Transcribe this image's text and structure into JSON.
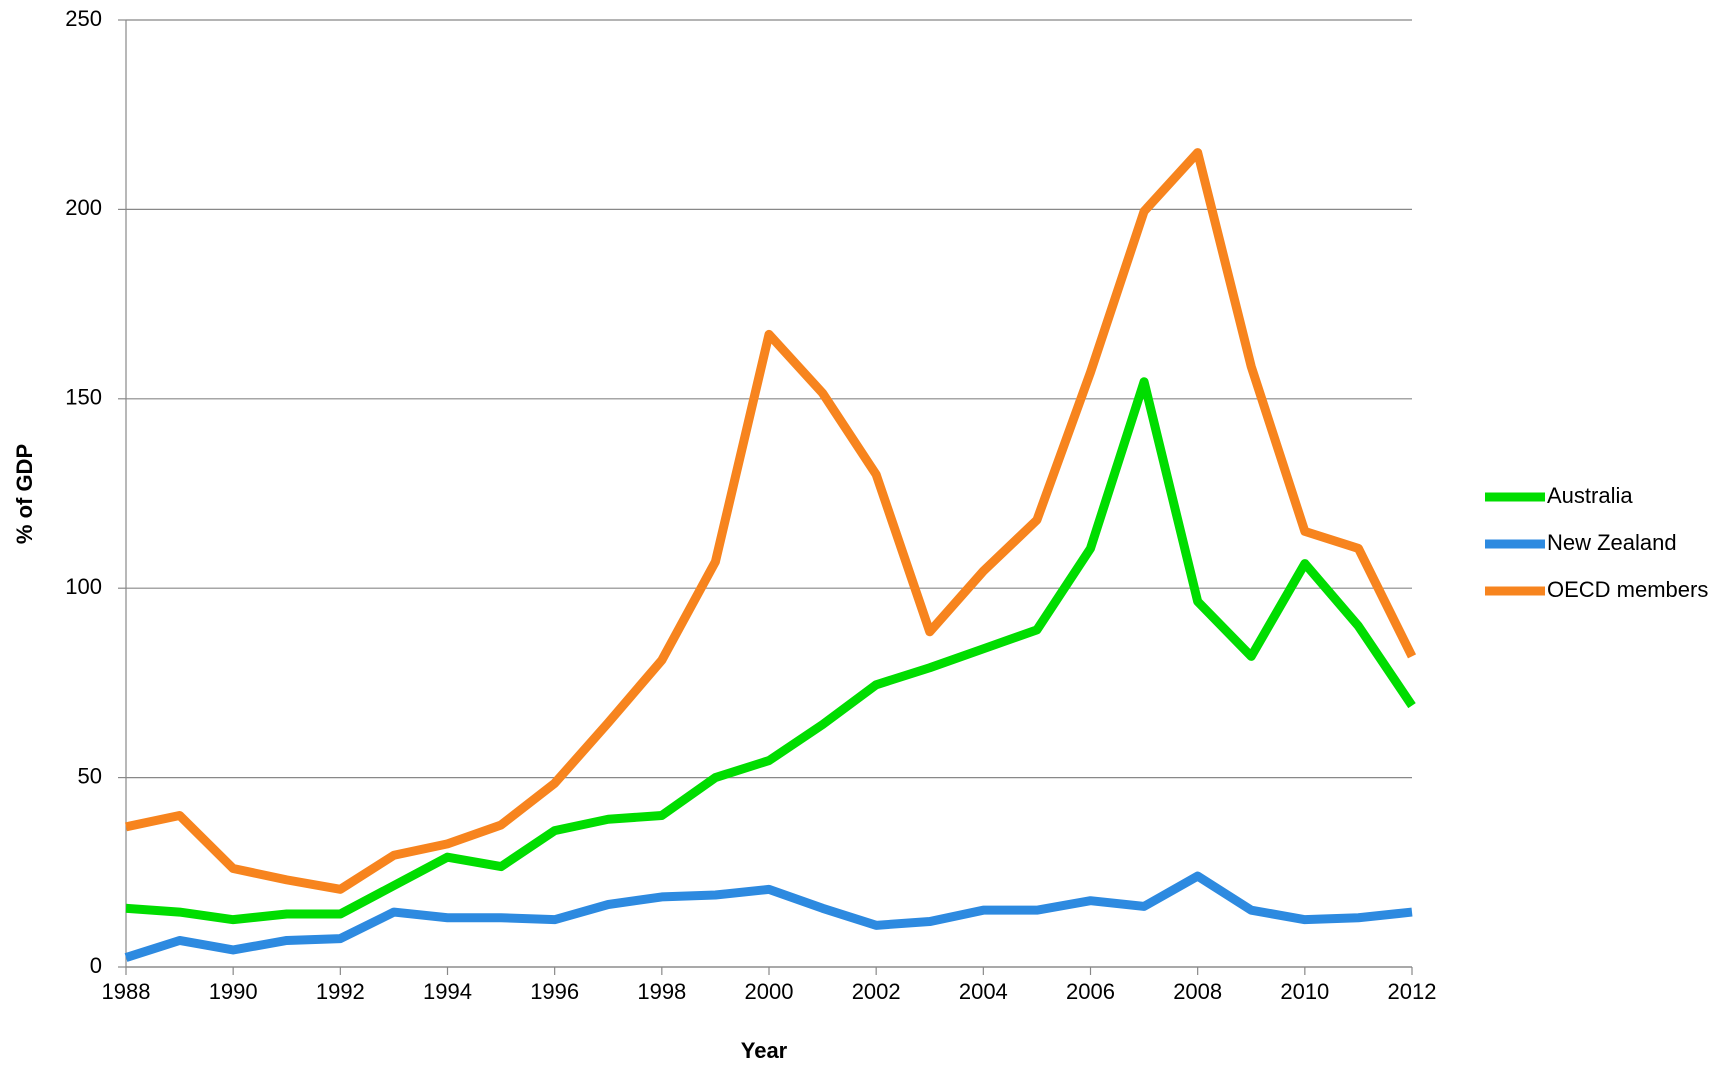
{
  "chart_data": {
    "type": "line",
    "x_label": "Year",
    "y_label": "% of GDP",
    "x": [
      1988,
      1989,
      1990,
      1991,
      1992,
      1993,
      1994,
      1995,
      1996,
      1997,
      1998,
      1999,
      2000,
      2001,
      2002,
      2003,
      2004,
      2005,
      2006,
      2007,
      2008,
      2009,
      2010,
      2011,
      2012
    ],
    "series": [
      {
        "name": "Australia",
        "color": "#00dd00",
        "values": [
          15.5,
          14.5,
          12.5,
          14,
          14,
          21.5,
          29,
          26.5,
          36,
          39,
          40,
          50,
          54.5,
          64,
          74.5,
          79,
          84,
          89,
          110.5,
          154.5,
          96.5,
          82,
          106.5,
          90,
          69
        ]
      },
      {
        "name": "New Zealand",
        "color": "#2d8ae0",
        "values": [
          2.5,
          7,
          4.5,
          7,
          7.5,
          14.5,
          13,
          13,
          12.5,
          16.5,
          18.5,
          19,
          20.5,
          15.5,
          11,
          12,
          15,
          15,
          17.5,
          16,
          24,
          15,
          12.5,
          13,
          14.5
        ]
      },
      {
        "name": "OECD members",
        "color": "#f7841e",
        "values": [
          37,
          40,
          26,
          23,
          20.5,
          29.5,
          32.5,
          37.5,
          48.5,
          64.5,
          81,
          107,
          167,
          151.5,
          130,
          88.5,
          104.5,
          118,
          157,
          199.5,
          215,
          158.5,
          115,
          110.5,
          82
        ]
      }
    ],
    "xlim": [
      1988,
      2012
    ],
    "xticks": [
      1988,
      1990,
      1992,
      1994,
      1996,
      1998,
      2000,
      2002,
      2004,
      2006,
      2008,
      2010,
      2012
    ],
    "ylim": [
      0,
      250
    ],
    "yticks": [
      0,
      50,
      100,
      150,
      200,
      250
    ],
    "grid": true,
    "legend": "right"
  }
}
